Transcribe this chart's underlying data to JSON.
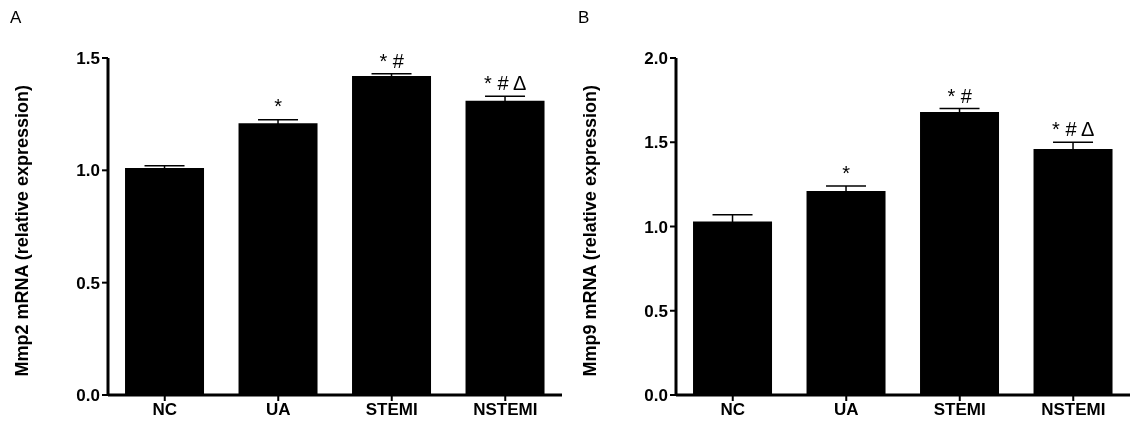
{
  "chart_data": [
    {
      "type": "bar",
      "title": "A",
      "categories": [
        "NC",
        "UA",
        "STEMI",
        "NSTEMI"
      ],
      "values": [
        1.01,
        1.21,
        1.42,
        1.31
      ],
      "errors": [
        0.01,
        0.015,
        0.01,
        0.02
      ],
      "color": "#000000",
      "ylabel": "Mmp2 mRNA (relative expression)",
      "ylim": [
        0,
        1.5
      ],
      "yticks": [
        {
          "value": 0,
          "label": "0.0"
        },
        {
          "value": 0.5,
          "label": "0.5"
        },
        {
          "value": 1,
          "label": "1.0"
        },
        {
          "value": 1.5,
          "label": "1.5"
        }
      ],
      "grid": false,
      "legend": false,
      "annotations": [
        {
          "text": "*",
          "x": "UA",
          "y": 1.23
        },
        {
          "text": "* #",
          "x": "STEMI",
          "y": 1.43
        },
        {
          "text": "* # Δ",
          "x": "NSTEMI",
          "y": 1.33
        }
      ]
    },
    {
      "type": "bar",
      "title": "B",
      "categories": [
        "NC",
        "UA",
        "STEMI",
        "NSTEMI"
      ],
      "values": [
        1.03,
        1.21,
        1.68,
        1.46
      ],
      "errors": [
        0.04,
        0.03,
        0.02,
        0.04
      ],
      "color": "#000000",
      "ylabel": "Mmp9 mRNA (relative expression)",
      "ylim": [
        0,
        2
      ],
      "yticks": [
        {
          "value": 0,
          "label": "0.0"
        },
        {
          "value": 0.5,
          "label": "0.5"
        },
        {
          "value": 1,
          "label": "1.0"
        },
        {
          "value": 1.5,
          "label": "1.5"
        },
        {
          "value": 2,
          "label": "2.0"
        }
      ],
      "grid": false,
      "legend": false,
      "annotations": [
        {
          "text": "*",
          "x": "UA",
          "y": 1.24
        },
        {
          "text": "* #",
          "x": "STEMI",
          "y": 1.7
        },
        {
          "text": "* # Δ",
          "x": "NSTEMI",
          "y": 1.5
        }
      ]
    }
  ]
}
